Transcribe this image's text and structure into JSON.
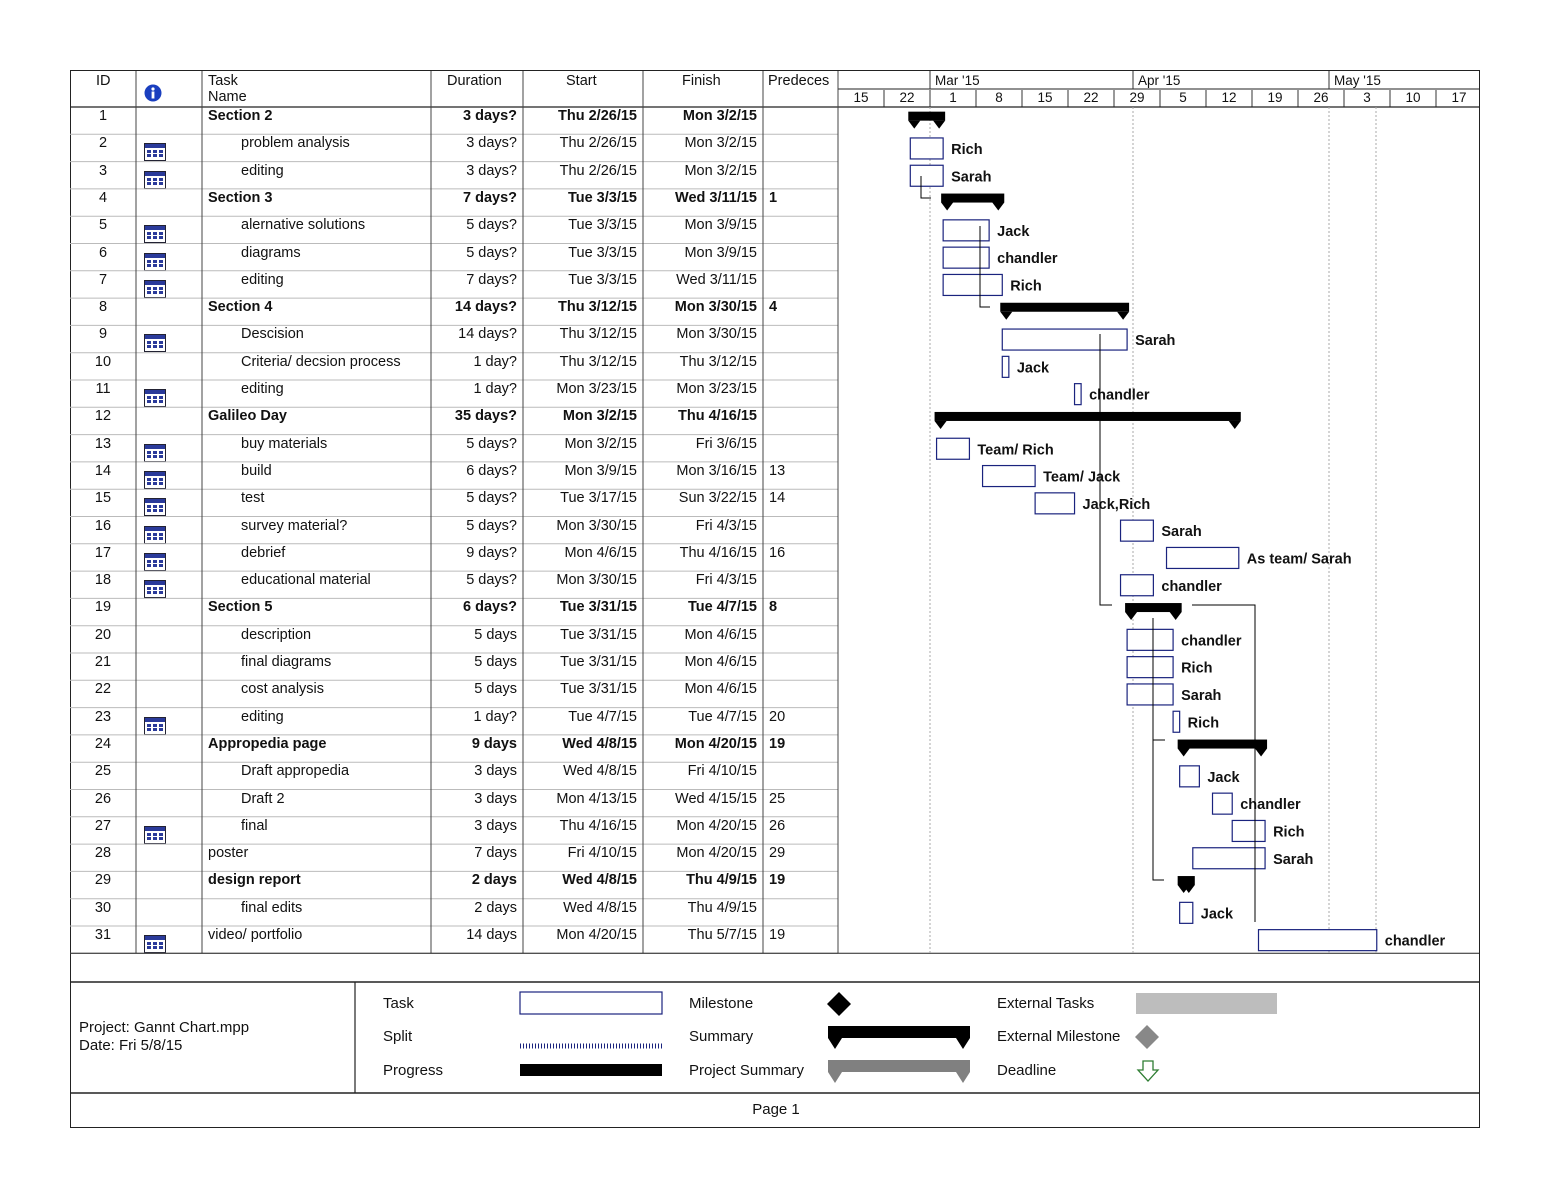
{
  "columns": {
    "id": "ID",
    "info": "info-icon",
    "task_name": "Task Name",
    "duration": "Duration",
    "start": "Start",
    "finish": "Finish",
    "predecessors": "Predeces"
  },
  "timescale": {
    "months": [
      "Mar '15",
      "Apr '15",
      "May '15"
    ],
    "days": [
      "15",
      "22",
      "1",
      "8",
      "15",
      "22",
      "29",
      "5",
      "12",
      "19",
      "26",
      "3",
      "10",
      "17"
    ]
  },
  "tasks": [
    {
      "id": "1",
      "name": "Section 2",
      "duration": "3 days?",
      "start": "Thu 2/26/15",
      "finish": "Mon 3/2/15",
      "pred": "",
      "summary": true,
      "indent": false,
      "note": false,
      "resource": ""
    },
    {
      "id": "2",
      "name": "problem analysis",
      "duration": "3 days?",
      "start": "Thu 2/26/15",
      "finish": "Mon 3/2/15",
      "pred": "",
      "summary": false,
      "indent": true,
      "note": true,
      "resource": "Rich"
    },
    {
      "id": "3",
      "name": "editing",
      "duration": "3 days?",
      "start": "Thu 2/26/15",
      "finish": "Mon 3/2/15",
      "pred": "",
      "summary": false,
      "indent": true,
      "note": true,
      "resource": "Sarah"
    },
    {
      "id": "4",
      "name": "Section 3",
      "duration": "7 days?",
      "start": "Tue 3/3/15",
      "finish": "Wed 3/11/15",
      "pred": "1",
      "summary": true,
      "indent": false,
      "note": false,
      "resource": ""
    },
    {
      "id": "5",
      "name": "alernative solutions",
      "duration": "5 days?",
      "start": "Tue 3/3/15",
      "finish": "Mon 3/9/15",
      "pred": "",
      "summary": false,
      "indent": true,
      "note": true,
      "resource": "Jack"
    },
    {
      "id": "6",
      "name": "diagrams",
      "duration": "5 days?",
      "start": "Tue 3/3/15",
      "finish": "Mon 3/9/15",
      "pred": "",
      "summary": false,
      "indent": true,
      "note": true,
      "resource": "chandler"
    },
    {
      "id": "7",
      "name": "editing",
      "duration": "7 days?",
      "start": "Tue 3/3/15",
      "finish": "Wed 3/11/15",
      "pred": "",
      "summary": false,
      "indent": true,
      "note": true,
      "resource": "Rich"
    },
    {
      "id": "8",
      "name": "Section 4",
      "duration": "14 days?",
      "start": "Thu 3/12/15",
      "finish": "Mon 3/30/15",
      "pred": "4",
      "summary": true,
      "indent": false,
      "note": false,
      "resource": ""
    },
    {
      "id": "9",
      "name": "Descision",
      "duration": "14 days?",
      "start": "Thu 3/12/15",
      "finish": "Mon 3/30/15",
      "pred": "",
      "summary": false,
      "indent": true,
      "note": true,
      "resource": "Sarah"
    },
    {
      "id": "10",
      "name": "Criteria/ decsion process",
      "duration": "1 day?",
      "start": "Thu 3/12/15",
      "finish": "Thu 3/12/15",
      "pred": "",
      "summary": false,
      "indent": true,
      "note": false,
      "resource": "Jack"
    },
    {
      "id": "11",
      "name": "editing",
      "duration": "1 day?",
      "start": "Mon 3/23/15",
      "finish": "Mon 3/23/15",
      "pred": "",
      "summary": false,
      "indent": true,
      "note": true,
      "resource": "chandler"
    },
    {
      "id": "12",
      "name": "Galileo Day",
      "duration": "35 days?",
      "start": "Mon 3/2/15",
      "finish": "Thu 4/16/15",
      "pred": "",
      "summary": true,
      "indent": false,
      "note": false,
      "resource": ""
    },
    {
      "id": "13",
      "name": "buy materials",
      "duration": "5 days?",
      "start": "Mon 3/2/15",
      "finish": "Fri 3/6/15",
      "pred": "",
      "summary": false,
      "indent": true,
      "note": true,
      "resource": "Team/ Rich"
    },
    {
      "id": "14",
      "name": "build",
      "duration": "6 days?",
      "start": "Mon 3/9/15",
      "finish": "Mon 3/16/15",
      "pred": "13",
      "summary": false,
      "indent": true,
      "note": true,
      "resource": "Team/ Jack"
    },
    {
      "id": "15",
      "name": "test",
      "duration": "5 days?",
      "start": "Tue 3/17/15",
      "finish": "Sun 3/22/15",
      "pred": "14",
      "summary": false,
      "indent": true,
      "note": true,
      "resource": "Jack,Rich"
    },
    {
      "id": "16",
      "name": "survey material?",
      "duration": "5 days?",
      "start": "Mon 3/30/15",
      "finish": "Fri 4/3/15",
      "pred": "",
      "summary": false,
      "indent": true,
      "note": true,
      "resource": "Sarah"
    },
    {
      "id": "17",
      "name": "debrief",
      "duration": "9 days?",
      "start": "Mon 4/6/15",
      "finish": "Thu 4/16/15",
      "pred": "16",
      "summary": false,
      "indent": true,
      "note": true,
      "resource": "As team/ Sarah"
    },
    {
      "id": "18",
      "name": "educational material",
      "duration": "5 days?",
      "start": "Mon 3/30/15",
      "finish": "Fri 4/3/15",
      "pred": "",
      "summary": false,
      "indent": true,
      "note": true,
      "resource": "chandler"
    },
    {
      "id": "19",
      "name": "Section 5",
      "duration": "6 days?",
      "start": "Tue 3/31/15",
      "finish": "Tue 4/7/15",
      "pred": "8",
      "summary": true,
      "indent": false,
      "note": false,
      "resource": ""
    },
    {
      "id": "20",
      "name": "description",
      "duration": "5 days",
      "start": "Tue 3/31/15",
      "finish": "Mon 4/6/15",
      "pred": "",
      "summary": false,
      "indent": true,
      "note": false,
      "resource": "chandler"
    },
    {
      "id": "21",
      "name": "final diagrams",
      "duration": "5 days",
      "start": "Tue 3/31/15",
      "finish": "Mon 4/6/15",
      "pred": "",
      "summary": false,
      "indent": true,
      "note": false,
      "resource": "Rich"
    },
    {
      "id": "22",
      "name": "cost analysis",
      "duration": "5 days",
      "start": "Tue 3/31/15",
      "finish": "Mon 4/6/15",
      "pred": "",
      "summary": false,
      "indent": true,
      "note": false,
      "resource": "Sarah"
    },
    {
      "id": "23",
      "name": "editing",
      "duration": "1 day?",
      "start": "Tue 4/7/15",
      "finish": "Tue 4/7/15",
      "pred": "20",
      "summary": false,
      "indent": true,
      "note": true,
      "resource": "Rich"
    },
    {
      "id": "24",
      "name": "Appropedia page",
      "duration": "9 days",
      "start": "Wed 4/8/15",
      "finish": "Mon 4/20/15",
      "pred": "19",
      "summary": true,
      "indent": false,
      "note": false,
      "resource": ""
    },
    {
      "id": "25",
      "name": "Draft appropedia",
      "duration": "3 days",
      "start": "Wed 4/8/15",
      "finish": "Fri 4/10/15",
      "pred": "",
      "summary": false,
      "indent": true,
      "note": false,
      "resource": "Jack"
    },
    {
      "id": "26",
      "name": "Draft 2",
      "duration": "3 days",
      "start": "Mon 4/13/15",
      "finish": "Wed 4/15/15",
      "pred": "25",
      "summary": false,
      "indent": true,
      "note": false,
      "resource": "chandler"
    },
    {
      "id": "27",
      "name": "final",
      "duration": "3 days",
      "start": "Thu 4/16/15",
      "finish": "Mon 4/20/15",
      "pred": "26",
      "summary": false,
      "indent": true,
      "note": true,
      "resource": "Rich"
    },
    {
      "id": "28",
      "name": "poster",
      "duration": "7 days",
      "start": "Fri 4/10/15",
      "finish": "Mon 4/20/15",
      "pred": "29",
      "summary": false,
      "indent": false,
      "note": false,
      "resource": "Sarah"
    },
    {
      "id": "29",
      "name": "design report",
      "duration": "2 days",
      "start": "Wed 4/8/15",
      "finish": "Thu 4/9/15",
      "pred": "19",
      "summary": true,
      "indent": false,
      "note": false,
      "resource": ""
    },
    {
      "id": "30",
      "name": "final edits",
      "duration": "2 days",
      "start": "Wed 4/8/15",
      "finish": "Thu 4/9/15",
      "pred": "",
      "summary": false,
      "indent": true,
      "note": false,
      "resource": "Jack"
    },
    {
      "id": "31",
      "name": "video/ portfolio",
      "duration": "14 days",
      "start": "Mon 4/20/15",
      "finish": "Thu 5/7/15",
      "pred": "19",
      "summary": false,
      "indent": false,
      "note": true,
      "resource": "chandler"
    }
  ],
  "legend": {
    "task": "Task",
    "split": "Split",
    "progress": "Progress",
    "milestone": "Milestone",
    "summary": "Summary",
    "project_summary": "Project Summary",
    "external_tasks": "External Tasks",
    "external_milestone": "External Milestone",
    "deadline": "Deadline"
  },
  "footer": {
    "project": "Project: Gannt Chart.mpp",
    "date": "Date: Fri 5/8/15",
    "page": "Page 1"
  },
  "colors": {
    "task_border": "#1a237e",
    "summary": "#000000",
    "link": "#000080",
    "external": "#bdbdbd",
    "project_summary": "#808080",
    "deadline": "#2e7d32"
  }
}
